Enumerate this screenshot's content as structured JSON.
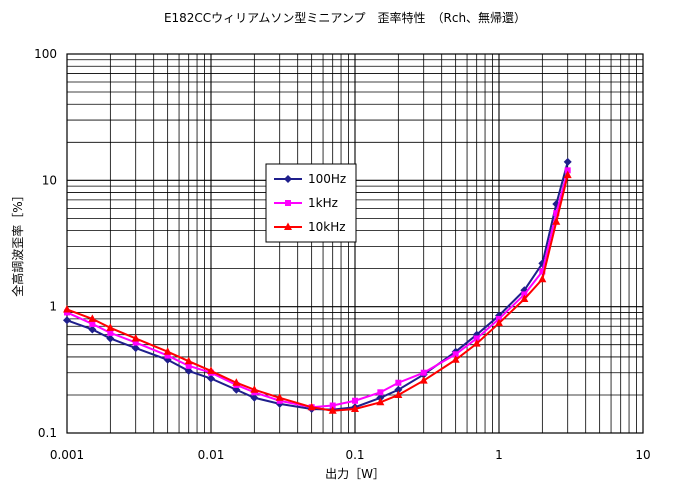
{
  "chart_data": {
    "type": "line",
    "title": "E182CCウィリアムソン型ミニアンプ　歪率特性　（Rch、無帰還）",
    "xlabel": "出力［W］",
    "ylabel": "全高調波歪率［%］",
    "x_scale": "log",
    "y_scale": "log",
    "xlim": [
      0.001,
      10
    ],
    "ylim": [
      0.1,
      100
    ],
    "x_tick_labels": [
      "0.001",
      "0.01",
      "0.1",
      "1",
      "10"
    ],
    "y_tick_labels": [
      "0.1",
      "1",
      "10",
      "100"
    ],
    "grid": true,
    "legend_placement": "center-left inside plot",
    "series": [
      {
        "name": "100Hz",
        "color": "#1f1f8c",
        "marker": "diamond",
        "points": [
          [
            0.001,
            0.78
          ],
          [
            0.0015,
            0.66
          ],
          [
            0.002,
            0.56
          ],
          [
            0.003,
            0.47
          ],
          [
            0.005,
            0.38
          ],
          [
            0.007,
            0.31
          ],
          [
            0.01,
            0.27
          ],
          [
            0.015,
            0.22
          ],
          [
            0.02,
            0.19
          ],
          [
            0.03,
            0.17
          ],
          [
            0.05,
            0.155
          ],
          [
            0.07,
            0.153
          ],
          [
            0.1,
            0.16
          ],
          [
            0.15,
            0.19
          ],
          [
            0.2,
            0.22
          ],
          [
            0.3,
            0.29
          ],
          [
            0.5,
            0.44
          ],
          [
            0.7,
            0.6
          ],
          [
            1,
            0.85
          ],
          [
            1.5,
            1.35
          ],
          [
            2,
            2.2
          ],
          [
            2.5,
            6.5
          ],
          [
            3,
            14
          ]
        ]
      },
      {
        "name": "1kHz",
        "color": "#ff00ff",
        "marker": "square",
        "points": [
          [
            0.001,
            0.9
          ],
          [
            0.0015,
            0.73
          ],
          [
            0.002,
            0.62
          ],
          [
            0.003,
            0.52
          ],
          [
            0.005,
            0.41
          ],
          [
            0.007,
            0.34
          ],
          [
            0.01,
            0.3
          ],
          [
            0.015,
            0.24
          ],
          [
            0.02,
            0.21
          ],
          [
            0.03,
            0.18
          ],
          [
            0.05,
            0.16
          ],
          [
            0.07,
            0.165
          ],
          [
            0.1,
            0.18
          ],
          [
            0.15,
            0.21
          ],
          [
            0.2,
            0.25
          ],
          [
            0.3,
            0.3
          ],
          [
            0.5,
            0.42
          ],
          [
            0.7,
            0.56
          ],
          [
            1,
            0.8
          ],
          [
            1.5,
            1.25
          ],
          [
            2,
            1.9
          ],
          [
            2.5,
            5.5
          ],
          [
            3,
            12
          ]
        ]
      },
      {
        "name": "10kHz",
        "color": "#ff0000",
        "marker": "triangle",
        "points": [
          [
            0.001,
            0.95
          ],
          [
            0.0015,
            0.8
          ],
          [
            0.002,
            0.68
          ],
          [
            0.003,
            0.56
          ],
          [
            0.005,
            0.44
          ],
          [
            0.007,
            0.37
          ],
          [
            0.01,
            0.31
          ],
          [
            0.015,
            0.25
          ],
          [
            0.02,
            0.22
          ],
          [
            0.03,
            0.19
          ],
          [
            0.05,
            0.16
          ],
          [
            0.07,
            0.15
          ],
          [
            0.1,
            0.155
          ],
          [
            0.15,
            0.175
          ],
          [
            0.2,
            0.2
          ],
          [
            0.3,
            0.26
          ],
          [
            0.5,
            0.38
          ],
          [
            0.7,
            0.51
          ],
          [
            1,
            0.74
          ],
          [
            1.5,
            1.15
          ],
          [
            2,
            1.65
          ],
          [
            2.5,
            4.7
          ],
          [
            3,
            11
          ]
        ]
      }
    ]
  }
}
